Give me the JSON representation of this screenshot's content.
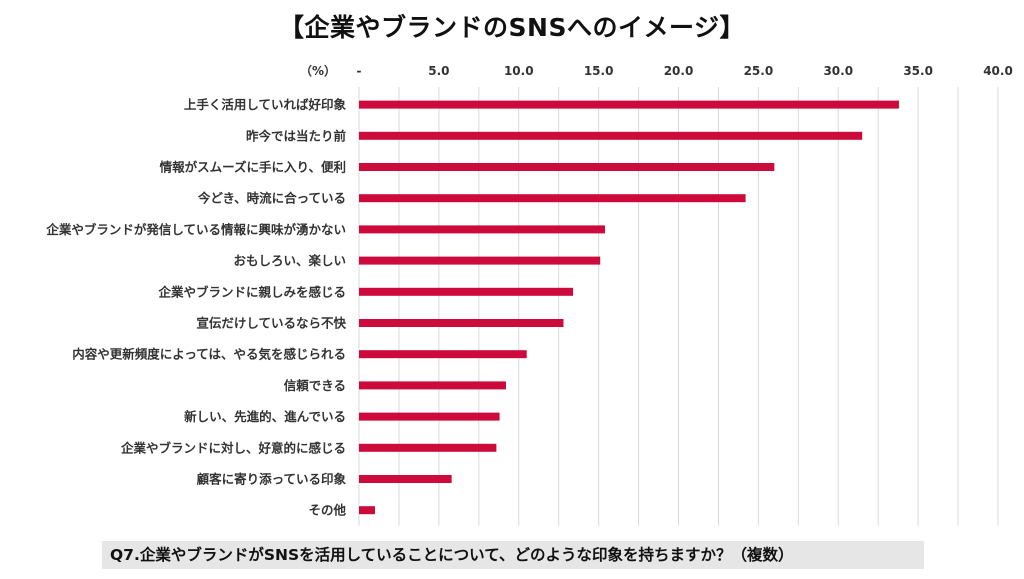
{
  "title": "【企業やブランドのSNSへのイメージ】",
  "caption": "Q7.企業やブランドがSNSを活用していることについて、どのような印象を持ちますか？（複数）",
  "colors": {
    "bar": "#cc0a3c",
    "grid": "#d9d9d9"
  },
  "chart_data": {
    "type": "bar",
    "orientation": "horizontal",
    "unit_label": "（%）",
    "x_tick_labels": [
      "-",
      "5.0",
      "10.0",
      "15.0",
      "20.0",
      "25.0",
      "30.0",
      "35.0",
      "40.0"
    ],
    "xlim": [
      0,
      40
    ],
    "grid": true,
    "categories": [
      "上手く活用していれば好印象",
      "昨今では当たり前",
      "情報がスムーズに手に入り、便利",
      "今どき、時流に合っている",
      "企業やブランドが発信している情報に興味が湧かない",
      "おもしろい、楽しい",
      "企業やブランドに親しみを感じる",
      "宣伝だけしているなら不快",
      "内容や更新頻度によっては、やる気を感じられる",
      "信頼できる",
      "新しい、先進的、進んでいる",
      "企業やブランドに対し、好意的に感じる",
      "顧客に寄り添っている印象",
      "その他"
    ],
    "values": [
      33.8,
      31.5,
      26.0,
      24.2,
      15.4,
      15.1,
      13.4,
      12.8,
      10.5,
      9.2,
      8.8,
      8.6,
      5.8,
      1.0
    ]
  }
}
